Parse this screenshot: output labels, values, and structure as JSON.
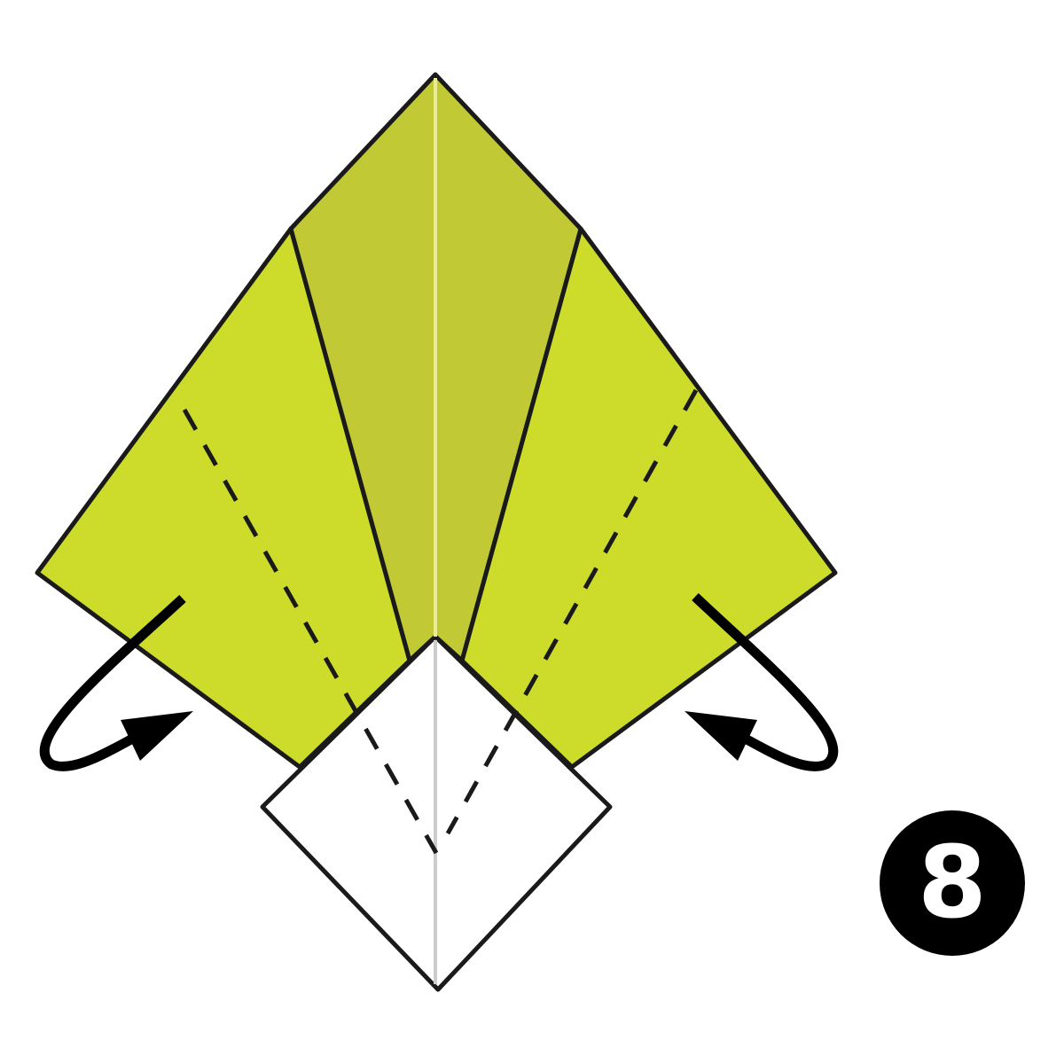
{
  "colors": {
    "paper_light": "#cddc2b",
    "paper_dark": "#c1ca34",
    "paper_white": "#ffffff",
    "outline": "#1a1a1a",
    "center_crease_top": "#e9eb98",
    "center_crease_bottom": "#cccccc",
    "badge_bg": "#000000",
    "badge_text": "#ffffff"
  },
  "step": {
    "number": "8",
    "icon": "step-number-badge"
  },
  "instructions": {
    "fold_lines": [
      "left-valley-fold-line",
      "right-valley-fold-line"
    ],
    "arrows": [
      "left-fold-behind-arrow",
      "right-fold-behind-arrow"
    ]
  }
}
